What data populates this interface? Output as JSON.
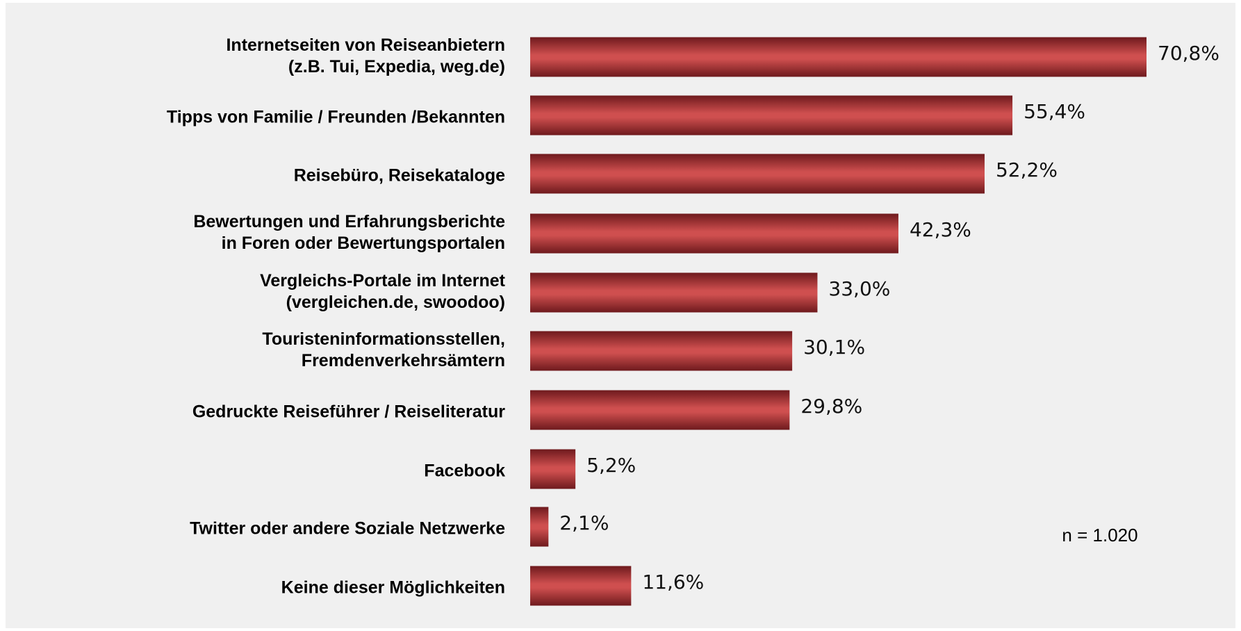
{
  "chart_data": {
    "type": "barh",
    "categories": [
      [
        "Internetseiten von Reiseanbietern",
        "(z.B. Tui, Expedia, weg.de)"
      ],
      [
        "Tipps von Familie / Freunden /Bekannten"
      ],
      [
        "Reisebüro, Reisekataloge"
      ],
      [
        "Bewertungen und Erfahrungsberichte",
        "in Foren oder Bewertungsportalen"
      ],
      [
        "Vergleichs-Portale im Internet",
        "(vergleichen.de, swoodoo)"
      ],
      [
        "Touristeninformationsstellen,",
        "Fremdenverkehrsämtern"
      ],
      [
        "Gedruckte Reiseführer / Reiseliteratur"
      ],
      [
        "Facebook"
      ],
      [
        "Twitter oder andere Soziale Netzwerke"
      ],
      [
        "Keine dieser Möglichkeiten"
      ]
    ],
    "values": [
      70.8,
      55.4,
      52.2,
      42.3,
      33.0,
      30.1,
      29.8,
      5.2,
      2.1,
      11.6
    ],
    "value_labels": [
      "70,8%",
      "55,4%",
      "52,2%",
      "42,3%",
      "33,0%",
      "30,1%",
      "29,8%",
      "5,2%",
      "2,1%",
      "11,6%"
    ],
    "color": "#cf4f4f",
    "annotation": "n = 1.020"
  }
}
